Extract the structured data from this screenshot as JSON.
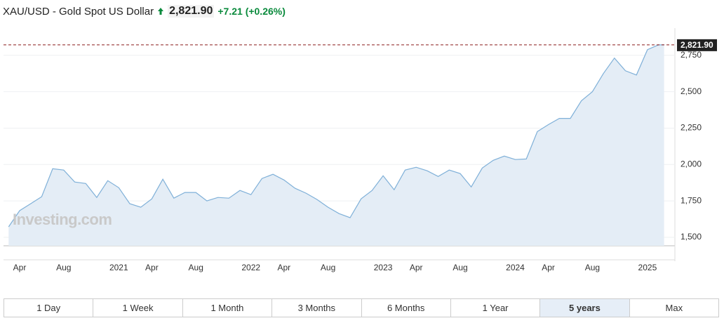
{
  "chart_data": {
    "type": "area",
    "title": "XAU/USD - Gold Spot US Dollar",
    "price": {
      "value": 2821.9,
      "label": "2,821.90"
    },
    "change": {
      "value": 7.21,
      "label": "+7.21"
    },
    "change_percent": {
      "value": 0.26,
      "label": "(+0.26%)"
    },
    "watermark": "Investing.com",
    "categories": [
      null,
      "Apr",
      null,
      null,
      null,
      "Aug",
      null,
      null,
      null,
      null,
      "2021",
      null,
      null,
      "Apr",
      null,
      null,
      null,
      "Aug",
      null,
      null,
      null,
      null,
      "2022",
      null,
      null,
      "Apr",
      null,
      null,
      null,
      "Aug",
      null,
      null,
      null,
      null,
      "2023",
      null,
      null,
      "Apr",
      null,
      null,
      null,
      "Aug",
      null,
      null,
      null,
      null,
      "2024",
      null,
      null,
      "Apr",
      null,
      null,
      null,
      "Aug",
      null,
      null,
      null,
      null,
      "2025",
      null
    ],
    "values": [
      1572,
      1683,
      1731,
      1779,
      1971,
      1962,
      1880,
      1870,
      1774,
      1889,
      1841,
      1731,
      1707,
      1764,
      1899,
      1769,
      1808,
      1808,
      1750,
      1774,
      1769,
      1822,
      1793,
      1904,
      1933,
      1894,
      1837,
      1803,
      1760,
      1707,
      1663,
      1635,
      1764,
      1822,
      1923,
      1827,
      1962,
      1981,
      1957,
      1918,
      1962,
      1938,
      1846,
      1976,
      2029,
      2058,
      2034,
      2038,
      2226,
      2274,
      2317,
      2317,
      2438,
      2500,
      2625,
      2731,
      2644,
      2615,
      2789,
      2821.9
    ],
    "color": "#7fb0d8",
    "fill_color": "#e4edf6",
    "ylim": [
      1442,
      2937
    ],
    "yticks": [
      {
        "value": 1500,
        "label": "1,500"
      },
      {
        "value": 1750,
        "label": "1,750"
      },
      {
        "value": 2000,
        "label": "2,000"
      },
      {
        "value": 2250,
        "label": "2,250"
      },
      {
        "value": 2500,
        "label": "2,500"
      },
      {
        "value": 2750,
        "label": "2,750"
      }
    ],
    "grid": true,
    "ranges": [
      "1 Day",
      "1 Week",
      "1 Month",
      "3 Months",
      "6 Months",
      "1 Year",
      "5 years",
      "Max"
    ],
    "selected_range_index": 6
  }
}
